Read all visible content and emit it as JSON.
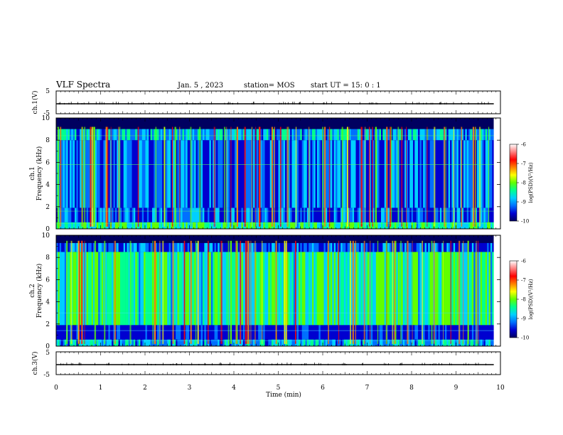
{
  "header": {
    "title": "VLF Spectra",
    "date": "Jan. 5 , 2023",
    "station": "station= MOS",
    "start": "start UT = 15: 0 : 1"
  },
  "colors": {
    "colormap": [
      "#000060",
      "#0000d0",
      "#0070ff",
      "#00d0ff",
      "#00ff90",
      "#60ff00",
      "#ffff00",
      "#ff8000",
      "#ff0000",
      "#ff8080",
      "#ffffff"
    ],
    "background": "#ffffff",
    "axis": "#000000"
  },
  "chart_data": [
    {
      "type": "line",
      "panel": "ch.1",
      "ylabel": "ch.1(V)",
      "ylim": [
        -5,
        5
      ],
      "yticks": [
        "5",
        "-5"
      ],
      "xlim": [
        0,
        10
      ],
      "series": [
        {
          "values_description_level": 0
        }
      ]
    },
    {
      "type": "heatmap",
      "panel": "ch.1 spectrogram",
      "ylabel": [
        "ch.1",
        "Frequency (kHz)"
      ],
      "ylim": [
        0,
        10
      ],
      "yticks": [
        "0",
        "2",
        "4",
        "6",
        "8",
        "10"
      ],
      "xlim": [
        0,
        10
      ],
      "data_extent_min": 9.85,
      "colorbar": {
        "label": "log(PSD)(V²/Hz)",
        "range": [
          -10,
          -6
        ],
        "ticks": [
          "-6",
          "-7",
          "-8",
          "-9",
          "-10"
        ]
      }
    },
    {
      "type": "heatmap",
      "panel": "ch.2 spectrogram",
      "ylabel": [
        "ch.2",
        "Frequency (kHz)"
      ],
      "ylim": [
        0,
        10
      ],
      "yticks": [
        "0",
        "2",
        "4",
        "6",
        "8",
        "10"
      ],
      "xlim": [
        0,
        10
      ],
      "data_extent_min": 9.85,
      "colorbar": {
        "label": "log(PSD)(V²/Hz)",
        "range": [
          -10,
          -6
        ],
        "ticks": [
          "-6",
          "-7",
          "-8",
          "-9",
          "-10"
        ]
      }
    },
    {
      "type": "line",
      "panel": "ch.3",
      "ylabel": "ch.3(V)",
      "ylim": [
        -5,
        5
      ],
      "yticks": [
        "5",
        "-5"
      ],
      "xlim": [
        0,
        10
      ],
      "series": [
        {
          "values_description_level": 0
        }
      ]
    }
  ],
  "xaxis": {
    "label": "Time (min)",
    "ticks": [
      "0",
      "1",
      "2",
      "3",
      "4",
      "5",
      "6",
      "7",
      "8",
      "9",
      "10"
    ]
  }
}
